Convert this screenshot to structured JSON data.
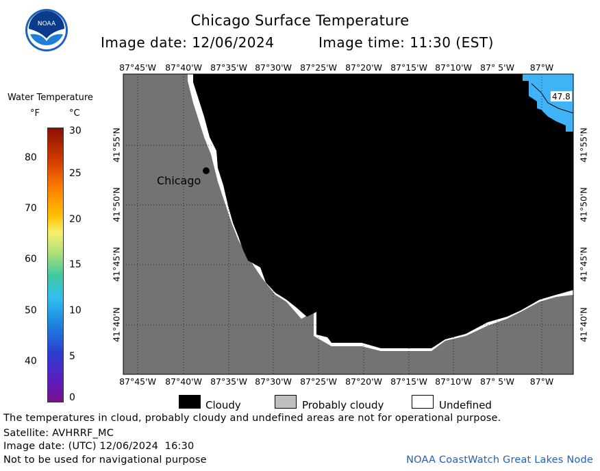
{
  "header": {
    "logo_text": "NOAA",
    "title": "Chicago Surface Temperature",
    "image_date": "Image date: 12/06/2024",
    "image_time": "Image time: 11:30 (EST)"
  },
  "colorbar": {
    "title": "Water Temperature",
    "unit_f": "°F",
    "unit_c": "°C",
    "f_ticks": [
      "80",
      "70",
      "60",
      "50",
      "40"
    ],
    "c_ticks": [
      "30",
      "25",
      "20",
      "15",
      "10",
      "5",
      "0"
    ]
  },
  "map": {
    "lon_ticks": [
      "87°45'W",
      "87°40'W",
      "87°35'W",
      "87°30'W",
      "87°25'W",
      "87°20'W",
      "87°15'W",
      "87°10'W",
      "87° 5'W",
      "87°W"
    ],
    "lat_ticks": [
      "41°55'N",
      "41°50'N",
      "41°45'N",
      "41°40'N"
    ],
    "city_label": "Chicago",
    "temp_contour_label": "47.8"
  },
  "legend": {
    "cloudy": "Cloudy",
    "probably_cloudy": "Probably cloudy",
    "undefined": "Undefined"
  },
  "footer": {
    "disclaimer": "The temperatures in cloud, probably cloudy and undefined areas are not for operational purpose.",
    "satellite": "Satellite: AVHRRF_MC",
    "utc_date": "Image date: (UTC) 12/06/2024  16:30",
    "navigation": "Not to be used for navigational purpose",
    "credit": "NOAA CoastWatch Great Lakes Node"
  },
  "colors": {
    "land": "#737373",
    "cloudy": "#000000",
    "probably_cloudy": "#bfbfbf",
    "undefined": "#ffffff",
    "water_warm": "#3fb3f5"
  }
}
